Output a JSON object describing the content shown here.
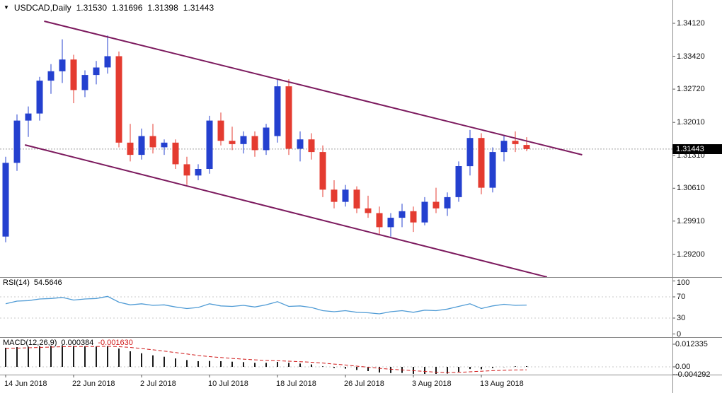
{
  "header": {
    "symbol_period": "USDCAD,Daily",
    "open": "1.31530",
    "high": "1.31696",
    "low": "1.31398",
    "close": "1.31443"
  },
  "price_axis": {
    "labels": [
      "1.34120",
      "1.33420",
      "1.32720",
      "1.32010",
      "1.31310",
      "1.30610",
      "1.29910",
      "1.29200"
    ],
    "values": [
      1.3412,
      1.3342,
      1.3272,
      1.3201,
      1.3131,
      1.3061,
      1.2991,
      1.292
    ],
    "current_price": "1.31443"
  },
  "time_axis": {
    "labels": [
      {
        "text": "14 Jun 2018",
        "index": 0
      },
      {
        "text": "22 Jun 2018",
        "index": 6
      },
      {
        "text": "2 Jul 2018",
        "index": 12
      },
      {
        "text": "10 Jul 2018",
        "index": 18
      },
      {
        "text": "18 Jul 2018",
        "index": 24
      },
      {
        "text": "26 Jul 2018",
        "index": 30
      },
      {
        "text": "3 Aug 2018",
        "index": 36
      },
      {
        "text": "13 Aug 2018",
        "index": 42
      }
    ]
  },
  "rsi_panel": {
    "name": "RSI(14)",
    "value": "54.5646",
    "axis_labels": [
      "100",
      "70",
      "30",
      "0"
    ],
    "axis_values": [
      100,
      70,
      30,
      0
    ]
  },
  "macd_panel": {
    "name": "MACD(12,26,9)",
    "value_main": "0.000384",
    "value_signal": "-0.001630",
    "axis_labels": [
      "0.012335",
      "0.00",
      "-0.004292"
    ],
    "axis_values": [
      0.012335,
      0,
      -0.004292
    ]
  },
  "colors": {
    "bull": "#2440cf",
    "bear": "#e43b30",
    "channel": "#7c1a5e",
    "rsi": "#4f9bd5",
    "macd_main": "#1a1a1a",
    "macd_signal": "#d01818",
    "separator": "#8c8c8c",
    "level_dotted": "#c8c8c8",
    "bid_line": "#a0a0a0",
    "price_box_bg": "#000000",
    "price_box_text": "#ffffff"
  },
  "chart_data": {
    "type": "candlestick",
    "symbol": "USDCAD",
    "timeframe": "Daily",
    "title": "USDCAD,Daily",
    "ohlc_current": {
      "open": 1.3153,
      "high": 1.31696,
      "low": 1.31398,
      "close": 1.31443
    },
    "ylim": [
      1.28718,
      1.34617
    ],
    "candles": [
      {
        "d": "2018-06-14",
        "o": 1.2958,
        "h": 1.3128,
        "l": 1.2946,
        "c": 1.3115
      },
      {
        "d": "2018-06-15",
        "o": 1.3115,
        "h": 1.3218,
        "l": 1.3098,
        "c": 1.3205
      },
      {
        "d": "2018-06-18",
        "o": 1.3205,
        "h": 1.3235,
        "l": 1.317,
        "c": 1.322
      },
      {
        "d": "2018-06-19",
        "o": 1.322,
        "h": 1.3298,
        "l": 1.3205,
        "c": 1.329
      },
      {
        "d": "2018-06-20",
        "o": 1.329,
        "h": 1.3325,
        "l": 1.3262,
        "c": 1.331
      },
      {
        "d": "2018-06-21",
        "o": 1.331,
        "h": 1.3378,
        "l": 1.3285,
        "c": 1.3335
      },
      {
        "d": "2018-06-22",
        "o": 1.3335,
        "h": 1.3345,
        "l": 1.3242,
        "c": 1.327
      },
      {
        "d": "2018-06-25",
        "o": 1.327,
        "h": 1.3312,
        "l": 1.3255,
        "c": 1.3302
      },
      {
        "d": "2018-06-26",
        "o": 1.3302,
        "h": 1.3332,
        "l": 1.3282,
        "c": 1.3318
      },
      {
        "d": "2018-06-27",
        "o": 1.3318,
        "h": 1.3386,
        "l": 1.3305,
        "c": 1.3342
      },
      {
        "d": "2018-06-28",
        "o": 1.3342,
        "h": 1.3352,
        "l": 1.3148,
        "c": 1.3158
      },
      {
        "d": "2018-06-29",
        "o": 1.3158,
        "h": 1.3198,
        "l": 1.3118,
        "c": 1.3132
      },
      {
        "d": "2018-07-02",
        "o": 1.3132,
        "h": 1.3188,
        "l": 1.3122,
        "c": 1.3172
      },
      {
        "d": "2018-07-03",
        "o": 1.3172,
        "h": 1.3198,
        "l": 1.3135,
        "c": 1.3148
      },
      {
        "d": "2018-07-04",
        "o": 1.3148,
        "h": 1.3165,
        "l": 1.3132,
        "c": 1.3158
      },
      {
        "d": "2018-07-05",
        "o": 1.3158,
        "h": 1.3165,
        "l": 1.3102,
        "c": 1.3112
      },
      {
        "d": "2018-07-06",
        "o": 1.3112,
        "h": 1.3128,
        "l": 1.3068,
        "c": 1.3088
      },
      {
        "d": "2018-07-09",
        "o": 1.3088,
        "h": 1.3112,
        "l": 1.3078,
        "c": 1.3102
      },
      {
        "d": "2018-07-10",
        "o": 1.3102,
        "h": 1.3215,
        "l": 1.3092,
        "c": 1.3205
      },
      {
        "d": "2018-07-11",
        "o": 1.3205,
        "h": 1.3222,
        "l": 1.3152,
        "c": 1.3162
      },
      {
        "d": "2018-07-12",
        "o": 1.3162,
        "h": 1.3192,
        "l": 1.3142,
        "c": 1.3155
      },
      {
        "d": "2018-07-13",
        "o": 1.3155,
        "h": 1.3182,
        "l": 1.3135,
        "c": 1.3172
      },
      {
        "d": "2018-07-16",
        "o": 1.3172,
        "h": 1.3182,
        "l": 1.3128,
        "c": 1.3142
      },
      {
        "d": "2018-07-17",
        "o": 1.3142,
        "h": 1.3198,
        "l": 1.3132,
        "c": 1.319
      },
      {
        "d": "2018-07-18",
        "o": 1.3172,
        "h": 1.3292,
        "l": 1.3158,
        "c": 1.3278
      },
      {
        "d": "2018-07-19",
        "o": 1.3278,
        "h": 1.3293,
        "l": 1.3132,
        "c": 1.3145
      },
      {
        "d": "2018-07-20",
        "o": 1.3145,
        "h": 1.3182,
        "l": 1.3118,
        "c": 1.3165
      },
      {
        "d": "2018-07-23",
        "o": 1.3165,
        "h": 1.3178,
        "l": 1.3122,
        "c": 1.3138
      },
      {
        "d": "2018-07-24",
        "o": 1.3138,
        "h": 1.3152,
        "l": 1.3042,
        "c": 1.3058
      },
      {
        "d": "2018-07-25",
        "o": 1.3058,
        "h": 1.3078,
        "l": 1.3018,
        "c": 1.3032
      },
      {
        "d": "2018-07-26",
        "o": 1.3032,
        "h": 1.3068,
        "l": 1.3022,
        "c": 1.3058
      },
      {
        "d": "2018-07-27",
        "o": 1.3058,
        "h": 1.3065,
        "l": 1.3008,
        "c": 1.3018
      },
      {
        "d": "2018-07-30",
        "o": 1.3018,
        "h": 1.3045,
        "l": 1.2998,
        "c": 1.3008
      },
      {
        "d": "2018-07-31",
        "o": 1.3008,
        "h": 1.3022,
        "l": 1.2962,
        "c": 1.2978
      },
      {
        "d": "2018-08-01",
        "o": 1.2978,
        "h": 1.3008,
        "l": 1.2958,
        "c": 1.2998
      },
      {
        "d": "2018-08-02",
        "o": 1.2998,
        "h": 1.3028,
        "l": 1.2978,
        "c": 1.3012
      },
      {
        "d": "2018-08-03",
        "o": 1.3012,
        "h": 1.3022,
        "l": 1.2968,
        "c": 1.2988
      },
      {
        "d": "2018-08-06",
        "o": 1.2988,
        "h": 1.3042,
        "l": 1.2982,
        "c": 1.3032
      },
      {
        "d": "2018-08-07",
        "o": 1.3032,
        "h": 1.3062,
        "l": 1.3008,
        "c": 1.3018
      },
      {
        "d": "2018-08-08",
        "o": 1.3018,
        "h": 1.3052,
        "l": 1.3002,
        "c": 1.3042
      },
      {
        "d": "2018-08-09",
        "o": 1.3042,
        "h": 1.3118,
        "l": 1.3032,
        "c": 1.3108
      },
      {
        "d": "2018-08-10",
        "o": 1.3108,
        "h": 1.3185,
        "l": 1.3088,
        "c": 1.3168
      },
      {
        "d": "2018-08-13",
        "o": 1.3168,
        "h": 1.3178,
        "l": 1.3048,
        "c": 1.3062
      },
      {
        "d": "2018-08-14",
        "o": 1.3062,
        "h": 1.3148,
        "l": 1.3052,
        "c": 1.3138
      },
      {
        "d": "2018-08-15",
        "o": 1.3138,
        "h": 1.3172,
        "l": 1.3118,
        "c": 1.3162
      },
      {
        "d": "2018-08-16",
        "o": 1.3162,
        "h": 1.3182,
        "l": 1.3138,
        "c": 1.3155
      },
      {
        "d": "2018-08-17",
        "o": 1.3153,
        "h": 1.31696,
        "l": 1.31398,
        "c": 1.31443
      }
    ],
    "channel": {
      "upper": {
        "from": {
          "index": 3.4,
          "price": 1.34165
        },
        "to": {
          "index": 50.9,
          "price": 1.31321
        }
      },
      "lower": {
        "from": {
          "index": 1.7,
          "price": 1.31532
        },
        "to": {
          "index": 47.8,
          "price": 1.28718
        }
      }
    },
    "rsi": {
      "period": 14,
      "current": 54.5646,
      "range": [
        0,
        100
      ],
      "levels": [
        70,
        30
      ],
      "values": [
        57,
        62,
        63,
        66,
        67,
        69,
        64,
        66,
        67,
        71,
        60,
        55,
        57,
        54,
        55,
        51,
        48,
        50,
        57,
        53,
        52,
        54,
        51,
        55,
        61,
        52,
        53,
        50,
        44,
        42,
        44,
        41,
        40,
        38,
        42,
        44,
        41,
        45,
        44,
        47,
        52,
        57,
        48,
        53,
        56,
        54,
        54.5646
      ]
    },
    "macd": {
      "fast": 12,
      "slow": 26,
      "signal_period": 9,
      "current_main": 0.000384,
      "current_signal": -0.00163,
      "range": [
        -0.004292,
        0.012335
      ],
      "histogram": [
        0.0104,
        0.0108,
        0.011,
        0.0113,
        0.0115,
        0.0118,
        0.0114,
        0.0112,
        0.0111,
        0.0113,
        0.01,
        0.0085,
        0.0074,
        0.0063,
        0.0055,
        0.0046,
        0.0037,
        0.0031,
        0.0032,
        0.0031,
        0.0028,
        0.0026,
        0.0022,
        0.0022,
        0.0027,
        0.0022,
        0.0018,
        0.0013,
        0.0003,
        -0.0006,
        -0.001,
        -0.0017,
        -0.0023,
        -0.0031,
        -0.0034,
        -0.0033,
        -0.0038,
        -0.004,
        -0.0043,
        -0.0037,
        -0.0027,
        -0.0012,
        -0.0013,
        -0.0007,
        -0.0001,
        0.0003,
        0.000384
      ],
      "signal": [
        0.01,
        0.0102,
        0.0104,
        0.0106,
        0.0108,
        0.011,
        0.0111,
        0.0111,
        0.0111,
        0.0112,
        0.011,
        0.0106,
        0.01,
        0.0093,
        0.0086,
        0.0078,
        0.007,
        0.0062,
        0.0056,
        0.0051,
        0.0046,
        0.0042,
        0.0038,
        0.0035,
        0.0033,
        0.0031,
        0.0028,
        0.0025,
        0.0021,
        0.0015,
        0.001,
        0.0004,
        -0.0002,
        -0.0008,
        -0.0013,
        -0.0017,
        -0.0021,
        -0.0025,
        -0.0029,
        -0.0031,
        -0.003,
        -0.0027,
        -0.0024,
        -0.0021,
        -0.0019,
        -0.0017,
        -0.00163
      ]
    }
  }
}
